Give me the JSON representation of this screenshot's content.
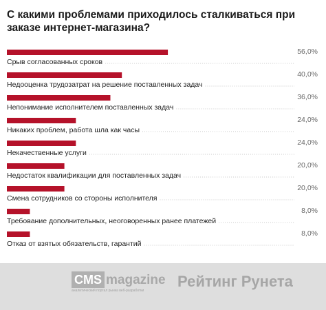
{
  "title": "С какими проблемами приходилось сталкиваться при заказе интернет-магазина?",
  "footer": {
    "cms_mark": "CMS",
    "cms_word": "magazine",
    "cms_tagline": "аналитический портал рынка веб-разработки",
    "runet": "Рейтинг Рунета"
  },
  "colors": {
    "bar": "#b5122a",
    "text": "#222222",
    "grid": "#c8c8c8",
    "value": "#666666",
    "footer_bg": "#dedede"
  },
  "chart_data": {
    "type": "bar",
    "orientation": "horizontal",
    "title": "С какими проблемами приходилось сталкиваться при заказе интернет-магазина?",
    "xlim": [
      0,
      100
    ],
    "categories": [
      "Срыв согласованных сроков",
      "Недооценка трудозатрат на решение поставленных задач",
      "Непонимание исполнителем поставленных задач",
      "Никаких проблем, работа шла как часы",
      "Некачественные услуги",
      "Недостаток квалификации для поставленных задач",
      "Смена сотрудников со стороны исполнителя",
      "Требование дополнительных, неоговоренных ранее платежей",
      "Отказ от взятых обязательств, гарантий"
    ],
    "values": [
      56.0,
      40.0,
      36.0,
      24.0,
      24.0,
      20.0,
      20.0,
      8.0,
      8.0
    ],
    "value_labels": [
      "56,0%",
      "40,0%",
      "36,0%",
      "24,0%",
      "24,0%",
      "20,0%",
      "20,0%",
      "8,0%",
      "8,0%"
    ]
  }
}
